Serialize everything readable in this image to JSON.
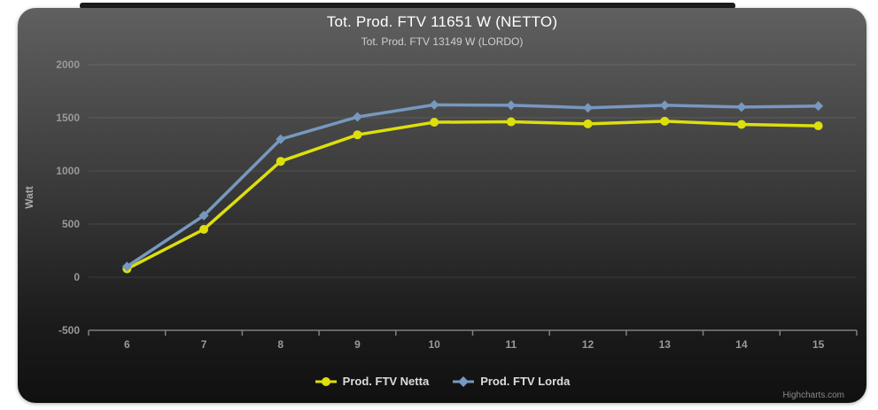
{
  "page": {
    "background": "#ffffff"
  },
  "chart_data": {
    "type": "line",
    "title": "Tot. Prod. FTV 11651 W (NETTO)",
    "subtitle": "Tot. Prod. FTV 13149 W (LORDO)",
    "xlabel": "",
    "ylabel": "Watt",
    "categories": [
      "6",
      "7",
      "8",
      "9",
      "10",
      "11",
      "12",
      "13",
      "14",
      "15"
    ],
    "yticks": [
      2000,
      1500,
      1000,
      500,
      0,
      -500
    ],
    "ylim": [
      -500,
      2000
    ],
    "grid": true,
    "legend_position": "bottom-center",
    "series": [
      {
        "name": "Prod. FTV Netta",
        "color": "#dddf0d",
        "marker": "circle",
        "values": [
          78,
          450,
          1090,
          1340,
          1458,
          1462,
          1443,
          1468,
          1438,
          1424
        ]
      },
      {
        "name": "Prod. FTV Lorda",
        "color": "#7798bf",
        "marker": "diamond",
        "values": [
          100,
          580,
          1298,
          1508,
          1622,
          1618,
          1594,
          1618,
          1601,
          1610
        ]
      }
    ],
    "credit": "Highcharts.com",
    "colors": {
      "card_top": "#606060",
      "card_bottom": "#101010",
      "axis": "#808080",
      "labels": "#999999",
      "title": "#ffffff",
      "subtitle": "#cfcfcf",
      "legend_text": "#dcdcdc",
      "gridline": "rgba(255,255,255,0.10)",
      "top_strip": "#1c1c1c"
    }
  }
}
